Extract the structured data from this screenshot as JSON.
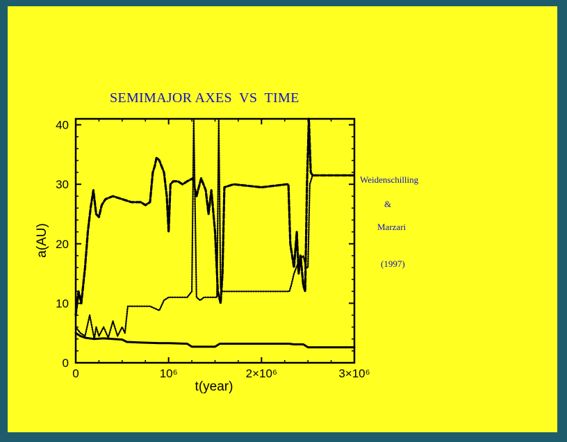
{
  "slide": {
    "title": "SEMIMAJOR AXES  VS  TIME",
    "citation": {
      "author1": "Weidenschilling",
      "amp": "&",
      "author2": "Marzari",
      "year": "(1997)"
    },
    "colors": {
      "background": "#ffff22",
      "frame": "#1e5c6b",
      "title": "#1010c8",
      "ink": "#000000"
    }
  },
  "chart_data": {
    "type": "line",
    "title": "",
    "xlabel": "t(year)",
    "ylabel": "a(AU)",
    "xlim": [
      0,
      3000000
    ],
    "ylim": [
      0,
      41
    ],
    "x_ticks": [
      {
        "value": 0,
        "label": "0"
      },
      {
        "value": 1000000,
        "label": "10⁶"
      },
      {
        "value": 2000000,
        "label": "2×10⁶"
      },
      {
        "value": 3000000,
        "label": "3×10⁶"
      }
    ],
    "y_ticks": [
      {
        "value": 0,
        "label": "0"
      },
      {
        "value": 10,
        "label": "10"
      },
      {
        "value": 20,
        "label": "20"
      },
      {
        "value": 30,
        "label": "30"
      },
      {
        "value": 40,
        "label": "40"
      }
    ],
    "grid": false,
    "legend": "none",
    "series": [
      {
        "style": "solid",
        "x": [
          0,
          50000,
          100000,
          200000,
          300000,
          400000,
          500000,
          550000,
          700000,
          900000,
          1000000,
          1200000,
          1250000,
          1400000,
          1500000,
          1550000,
          1700000,
          2000000,
          2300000,
          2350000,
          2450000,
          2500000,
          2700000,
          3000000
        ],
        "y": [
          5,
          4.5,
          4.2,
          4.0,
          4.1,
          4.0,
          3.9,
          3.5,
          3.4,
          3.3,
          3.3,
          3.2,
          2.7,
          2.7,
          2.7,
          3.2,
          3.2,
          3.2,
          3.2,
          3.1,
          3.1,
          2.6,
          2.6,
          2.6
        ]
      },
      {
        "style": "dotted",
        "x": [
          0,
          50000,
          100000,
          150000,
          200000,
          220000,
          250000,
          300000,
          350000,
          400000,
          450000,
          500000,
          530000,
          560000,
          600000,
          800000,
          900000,
          950000,
          1000000,
          1200000,
          1250000,
          1270000,
          1300000,
          1340000,
          1380000,
          1400000,
          1500000,
          1520000,
          1540000,
          1560000,
          1580000,
          1700000,
          2000000,
          2300000,
          2320000,
          2350000,
          2400000,
          2450000,
          2480000,
          2500000,
          2520000,
          2550000,
          2600000,
          2800000,
          3000000
        ],
        "y": [
          6,
          5,
          4.5,
          8,
          4,
          6,
          4.5,
          6,
          4.2,
          7,
          4.5,
          6,
          5,
          9.5,
          9.5,
          9.5,
          8.8,
          10.5,
          11,
          11,
          12,
          41,
          11,
          10.5,
          11,
          11,
          11,
          11,
          41,
          12.5,
          12,
          12,
          12,
          12,
          13,
          15,
          17,
          18,
          16,
          16,
          30,
          31.5,
          31.5,
          31.5,
          31.5
        ]
      },
      {
        "style": "dashed",
        "x": [
          0,
          30000,
          60000,
          100000,
          130000,
          160000,
          190000,
          220000,
          250000,
          280000,
          320000,
          400000,
          500000,
          600000,
          700000,
          750000,
          800000,
          830000,
          850000,
          870000,
          900000,
          950000,
          980000,
          1000000,
          1020000,
          1050000,
          1100000,
          1150000,
          1200000,
          1260000,
          1300000,
          1350000,
          1400000,
          1430000,
          1460000,
          1500000,
          1530000,
          1560000,
          1580000,
          1600000,
          1700000,
          2000000,
          2270000,
          2290000,
          2310000,
          2350000,
          2380000,
          2400000,
          2420000,
          2450000,
          2470000,
          2490000,
          2510000,
          2530000,
          2550000,
          2600000,
          2800000,
          3000000
        ],
        "y": [
          8,
          12,
          10,
          16,
          22,
          26,
          29,
          25,
          24.5,
          26.5,
          27.5,
          28,
          27.5,
          27,
          27,
          26.5,
          27,
          32,
          33,
          34.5,
          34,
          32,
          28,
          22,
          30,
          30.5,
          30.5,
          30,
          30.5,
          31,
          28,
          31,
          29,
          25,
          29,
          22,
          12,
          10,
          15,
          29.5,
          30,
          29.5,
          30,
          30,
          20,
          16,
          22,
          15,
          18,
          13,
          12,
          30,
          41,
          32,
          31.5,
          31.5,
          31.5,
          31.5
        ]
      }
    ]
  }
}
